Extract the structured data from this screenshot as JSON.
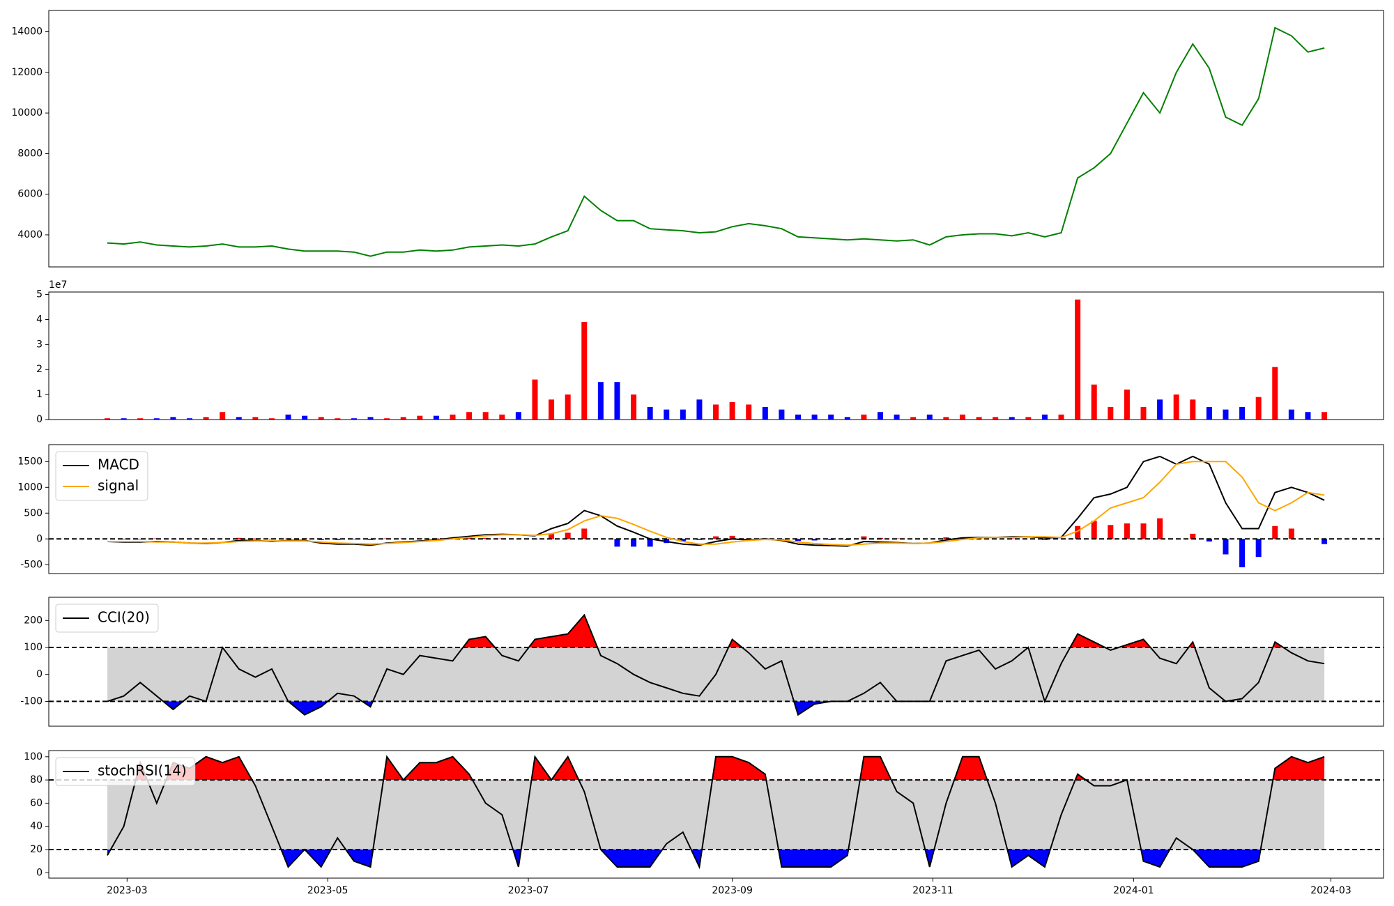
{
  "chart_data": [
    {
      "type": "line",
      "x": [
        53,
        58,
        63,
        68,
        73,
        78,
        83,
        88,
        93,
        98,
        103,
        108,
        113,
        118,
        123,
        128,
        133,
        138,
        143,
        148,
        153,
        158,
        163,
        168,
        173,
        178,
        183,
        188,
        193,
        198,
        203,
        208,
        213,
        218,
        223,
        228,
        233,
        238,
        243,
        248,
        253,
        258,
        263,
        268,
        273,
        278,
        283,
        288,
        293,
        298,
        303,
        308,
        313,
        318,
        323,
        328,
        333,
        338,
        343,
        348,
        353,
        358,
        363,
        368,
        373,
        378,
        383,
        388,
        393,
        398,
        403,
        408,
        413,
        418,
        423
      ],
      "xlim": [
        35.2,
        441
      ],
      "ylim": [
        2420,
        15050
      ],
      "yticks": [
        4000,
        6000,
        8000,
        10000,
        12000,
        14000
      ],
      "series": [
        {
          "color": "green",
          "values": [
            3600,
            3550,
            3650,
            3500,
            3450,
            3400,
            3450,
            3550,
            3400,
            3400,
            3450,
            3300,
            3200,
            3200,
            3200,
            3150,
            2950,
            3150,
            3150,
            3250,
            3200,
            3250,
            3400,
            3450,
            3500,
            3450,
            3550,
            3900,
            4200,
            5900,
            5200,
            4700,
            4700,
            4300,
            4250,
            4200,
            4100,
            4150,
            4400,
            4550,
            4450,
            4300,
            3900,
            3850,
            3800,
            3750,
            3800,
            3750,
            3700,
            3750,
            3500,
            3900,
            4000,
            4050,
            4050,
            3950,
            4100,
            3900,
            4100,
            6800,
            7300,
            8000,
            9500,
            11000,
            10000,
            12000,
            13400,
            12200,
            9800,
            9400,
            10700,
            14200,
            13800,
            13000,
            13200
          ]
        }
      ]
    },
    {
      "type": "bar",
      "scale_label": "1e7",
      "up_color": "red",
      "down_color": "blue",
      "ylim": [
        0,
        5.1
      ],
      "yticks": [
        0,
        1,
        2,
        3,
        4,
        5
      ],
      "values": [
        0.05,
        0.05,
        0.05,
        0.05,
        0.1,
        0.05,
        0.1,
        0.3,
        0.1,
        0.1,
        0.05,
        0.2,
        0.15,
        0.1,
        0.05,
        0.05,
        0.1,
        0.05,
        0.1,
        0.15,
        0.15,
        0.2,
        0.3,
        0.3,
        0.2,
        0.3,
        1.6,
        0.8,
        1.0,
        3.9,
        1.5,
        1.5,
        1.0,
        0.5,
        0.4,
        0.4,
        0.8,
        0.6,
        0.7,
        0.6,
        0.5,
        0.4,
        0.2,
        0.2,
        0.2,
        0.1,
        0.2,
        0.3,
        0.2,
        0.1,
        0.2,
        0.1,
        0.2,
        0.1,
        0.1,
        0.1,
        0.1,
        0.2,
        0.2,
        4.8,
        1.4,
        0.5,
        1.2,
        0.5,
        0.8,
        1.0,
        0.8,
        0.5,
        0.4,
        0.5,
        0.9,
        2.1,
        0.4,
        0.3,
        0.3
      ]
    },
    {
      "type": "line",
      "ylim": [
        -672,
        1828
      ],
      "yticks": [
        -500,
        0,
        500,
        1000,
        1500
      ],
      "hlines": [
        0
      ],
      "legend": "upper left",
      "series": [
        {
          "type": "bar",
          "pos_color": "red",
          "neg_color": "blue",
          "values": [
            0,
            -10,
            -10,
            10,
            0,
            0,
            -10,
            0,
            20,
            10,
            -10,
            10,
            10,
            -20,
            -20,
            -10,
            -20,
            10,
            10,
            10,
            10,
            20,
            20,
            20,
            10,
            0,
            -10,
            100,
            120,
            200,
            0,
            -150,
            -150,
            -150,
            -80,
            -50,
            -20,
            50,
            60,
            10,
            10,
            -10,
            -40,
            -30,
            -20,
            -20,
            50,
            20,
            10,
            0,
            0,
            30,
            30,
            10,
            0,
            10,
            0,
            -20,
            0,
            250,
            350,
            270,
            300,
            300,
            400,
            0,
            100,
            -50,
            -300,
            -550,
            -350,
            250,
            200,
            0,
            -100
          ]
        },
        {
          "name": "MACD",
          "color": "black",
          "values": [
            -50,
            -60,
            -60,
            -50,
            -60,
            -80,
            -90,
            -70,
            -30,
            -30,
            -50,
            -30,
            -30,
            -80,
            -100,
            -100,
            -120,
            -80,
            -60,
            -40,
            -20,
            20,
            50,
            80,
            90,
            80,
            60,
            200,
            300,
            550,
            450,
            250,
            130,
            0,
            -50,
            -100,
            -120,
            -50,
            0,
            -20,
            0,
            -30,
            -100,
            -120,
            -130,
            -140,
            -50,
            -60,
            -70,
            -90,
            -80,
            -20,
            20,
            30,
            30,
            40,
            40,
            20,
            30,
            400,
            800,
            870,
            1000,
            1500,
            1600,
            1450,
            1600,
            1450,
            700,
            200,
            200,
            900,
            1000,
            900,
            750
          ]
        },
        {
          "name": "signal",
          "color": "orange",
          "values": [
            -50,
            -50,
            -50,
            -60,
            -60,
            -80,
            -80,
            -70,
            -50,
            -40,
            -40,
            -40,
            -40,
            -60,
            -80,
            -90,
            -100,
            -90,
            -70,
            -50,
            -30,
            0,
            30,
            60,
            80,
            80,
            70,
            100,
            180,
            350,
            450,
            400,
            280,
            150,
            30,
            -50,
            -100,
            -100,
            -60,
            -30,
            -10,
            -20,
            -60,
            -90,
            -110,
            -120,
            -100,
            -80,
            -80,
            -90,
            -80,
            -50,
            -10,
            20,
            30,
            30,
            40,
            40,
            30,
            150,
            350,
            600,
            700,
            800,
            1100,
            1450,
            1500,
            1500,
            1500,
            1200,
            700,
            550,
            700,
            900,
            850
          ]
        }
      ]
    },
    {
      "type": "line",
      "ylim": [
        -192,
        286
      ],
      "yticks": [
        -100,
        0,
        100,
        200
      ],
      "hlines": [
        -100,
        100
      ],
      "band_color": "lightgray",
      "above_color": "red",
      "below_color": "blue",
      "legend": "upper left",
      "series": [
        {
          "name": "CCI(20)",
          "color": "black",
          "values": [
            -100,
            -80,
            -30,
            -80,
            -130,
            -80,
            -100,
            100,
            20,
            -10,
            20,
            -100,
            -150,
            -120,
            -70,
            -80,
            -120,
            20,
            0,
            70,
            60,
            50,
            130,
            140,
            70,
            50,
            130,
            140,
            150,
            220,
            70,
            40,
            0,
            -30,
            -50,
            -70,
            -80,
            0,
            130,
            80,
            20,
            50,
            -150,
            -110,
            -100,
            -100,
            -70,
            -30,
            -100,
            -100,
            -100,
            50,
            70,
            90,
            20,
            50,
            100,
            -100,
            40,
            150,
            120,
            90,
            110,
            130,
            60,
            40,
            120,
            -50,
            -100,
            -90,
            -30,
            120,
            80,
            50,
            40
          ]
        }
      ]
    },
    {
      "type": "line",
      "ylim": [
        -4.6,
        105.3
      ],
      "yticks": [
        0,
        20,
        40,
        60,
        80,
        100
      ],
      "hlines": [
        20,
        80
      ],
      "band_color": "lightgray",
      "above_color": "red",
      "below_color": "blue",
      "legend": "upper left",
      "xticks": [
        {
          "value": 59,
          "label": "2023-03"
        },
        {
          "value": 120,
          "label": "2023-05"
        },
        {
          "value": 181,
          "label": "2023-07"
        },
        {
          "value": 243,
          "label": "2023-09"
        },
        {
          "value": 304,
          "label": "2023-11"
        },
        {
          "value": 365,
          "label": "2024-01"
        },
        {
          "value": 425,
          "label": "2024-03"
        }
      ],
      "series": [
        {
          "name": "stochRSI(14)",
          "color": "black",
          "values": [
            15,
            40,
            95,
            60,
            95,
            90,
            100,
            95,
            100,
            75,
            40,
            5,
            20,
            5,
            30,
            10,
            5,
            100,
            80,
            95,
            95,
            100,
            85,
            60,
            50,
            5,
            100,
            80,
            100,
            70,
            20,
            5,
            5,
            5,
            25,
            35,
            5,
            100,
            100,
            95,
            85,
            5,
            5,
            5,
            5,
            15,
            100,
            100,
            70,
            60,
            5,
            60,
            100,
            100,
            60,
            5,
            15,
            5,
            50,
            85,
            75,
            75,
            80,
            10,
            5,
            30,
            20,
            5,
            5,
            5,
            10,
            90,
            100,
            95,
            100
          ]
        }
      ]
    }
  ]
}
